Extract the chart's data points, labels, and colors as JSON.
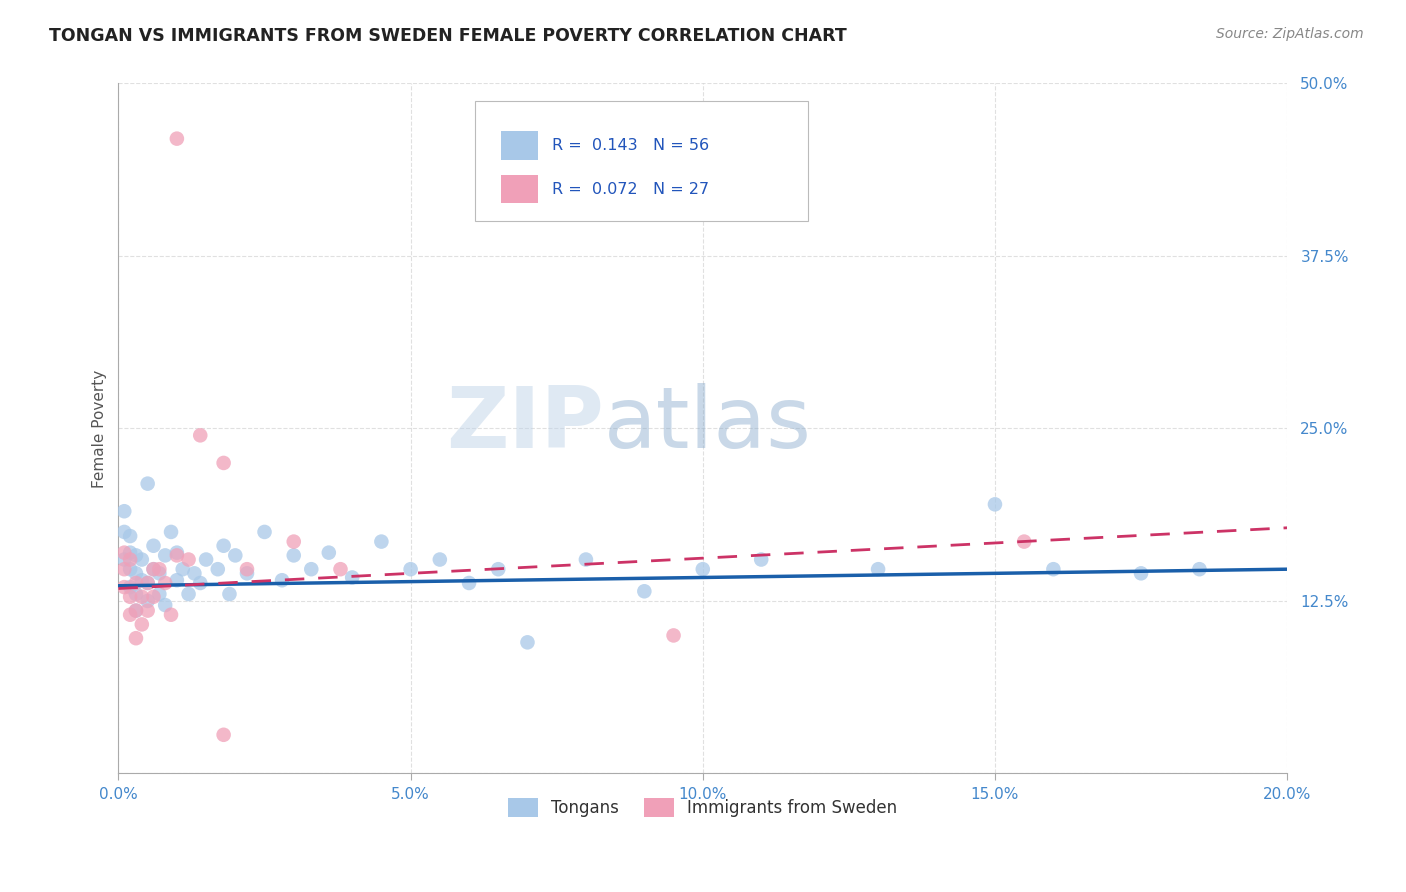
{
  "title": "TONGAN VS IMMIGRANTS FROM SWEDEN FEMALE POVERTY CORRELATION CHART",
  "source": "Source: ZipAtlas.com",
  "ylabel": "Female Poverty",
  "watermark_zip": "ZIP",
  "watermark_atlas": "atlas",
  "xlim": [
    0.0,
    0.2
  ],
  "ylim": [
    0.0,
    0.5
  ],
  "xticks": [
    0.0,
    0.05,
    0.1,
    0.15,
    0.2
  ],
  "yticks": [
    0.0,
    0.125,
    0.25,
    0.375,
    0.5
  ],
  "series1_label": "Tongans",
  "series1_R": 0.143,
  "series1_N": 56,
  "series1_color": "#a8c8e8",
  "series1_line_color": "#1a5faa",
  "series2_label": "Immigrants from Sweden",
  "series2_R": 0.072,
  "series2_N": 27,
  "series2_color": "#f0a0b8",
  "series2_line_color": "#cc3366",
  "blue_x": [
    0.001,
    0.001,
    0.001,
    0.002,
    0.002,
    0.002,
    0.002,
    0.003,
    0.003,
    0.003,
    0.003,
    0.004,
    0.004,
    0.005,
    0.005,
    0.005,
    0.006,
    0.006,
    0.007,
    0.007,
    0.008,
    0.008,
    0.009,
    0.01,
    0.01,
    0.011,
    0.012,
    0.013,
    0.014,
    0.015,
    0.017,
    0.018,
    0.019,
    0.02,
    0.022,
    0.025,
    0.028,
    0.03,
    0.033,
    0.036,
    0.04,
    0.045,
    0.05,
    0.055,
    0.06,
    0.065,
    0.07,
    0.08,
    0.09,
    0.1,
    0.11,
    0.13,
    0.15,
    0.16,
    0.175,
    0.185
  ],
  "blue_y": [
    0.155,
    0.175,
    0.19,
    0.135,
    0.148,
    0.16,
    0.172,
    0.13,
    0.145,
    0.158,
    0.118,
    0.14,
    0.155,
    0.125,
    0.138,
    0.21,
    0.148,
    0.165,
    0.13,
    0.145,
    0.122,
    0.158,
    0.175,
    0.14,
    0.16,
    0.148,
    0.13,
    0.145,
    0.138,
    0.155,
    0.148,
    0.165,
    0.13,
    0.158,
    0.145,
    0.175,
    0.14,
    0.158,
    0.148,
    0.16,
    0.142,
    0.168,
    0.148,
    0.155,
    0.138,
    0.148,
    0.095,
    0.155,
    0.132,
    0.148,
    0.155,
    0.148,
    0.195,
    0.148,
    0.145,
    0.148
  ],
  "pink_x": [
    0.001,
    0.001,
    0.001,
    0.002,
    0.002,
    0.002,
    0.003,
    0.003,
    0.003,
    0.004,
    0.004,
    0.005,
    0.005,
    0.006,
    0.006,
    0.007,
    0.008,
    0.009,
    0.01,
    0.012,
    0.014,
    0.018,
    0.022,
    0.03,
    0.038,
    0.095,
    0.155
  ],
  "pink_y": [
    0.135,
    0.148,
    0.16,
    0.115,
    0.128,
    0.155,
    0.118,
    0.138,
    0.098,
    0.128,
    0.108,
    0.138,
    0.118,
    0.148,
    0.128,
    0.148,
    0.138,
    0.115,
    0.158,
    0.155,
    0.245,
    0.225,
    0.148,
    0.168,
    0.148,
    0.1,
    0.168
  ],
  "pink_outlier_x": [
    0.01
  ],
  "pink_outlier_y": [
    0.46
  ],
  "pink_low_x": [
    0.018
  ],
  "pink_low_y": [
    0.028
  ],
  "blue_trend_start_y": 0.136,
  "blue_trend_end_y": 0.148,
  "pink_trend_start_y": 0.134,
  "pink_trend_end_y": 0.178,
  "background_color": "#ffffff",
  "grid_color": "#cccccc",
  "title_color": "#222222",
  "axis_label_color": "#555555",
  "tick_color_y": "#4488cc",
  "tick_color_x": "#4488cc",
  "marker_size": 110,
  "marker_alpha": 0.75
}
